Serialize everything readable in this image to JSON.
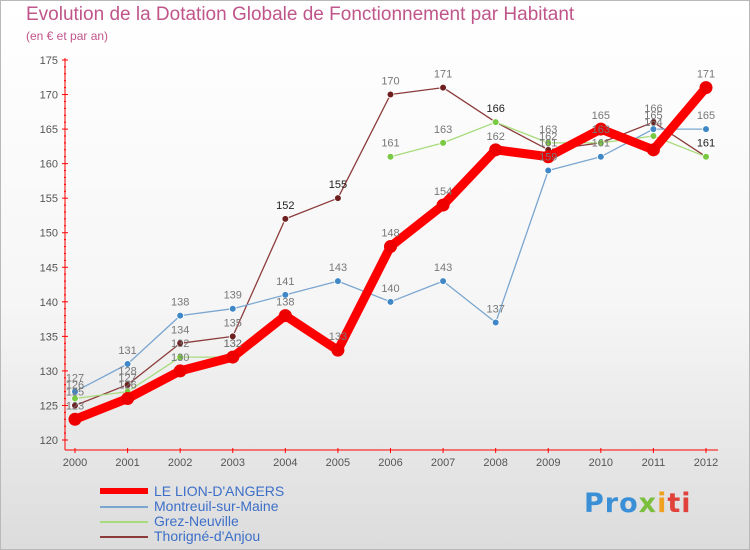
{
  "chart_data": {
    "type": "line",
    "title": "Evolution de la Dotation Globale de Fonctionnement par Habitant",
    "subtitle": "(en € et par an)",
    "x": [
      2000,
      2001,
      2002,
      2003,
      2004,
      2005,
      2006,
      2007,
      2008,
      2009,
      2010,
      2011,
      2012
    ],
    "x_tick_labels": [
      "2000",
      "2001",
      "2002",
      "2003",
      "2004",
      "2005",
      "2006",
      "2007",
      "2008",
      "2009",
      "2010",
      "2011",
      "2012"
    ],
    "y_ticks": [
      120,
      125,
      130,
      135,
      140,
      145,
      150,
      155,
      160,
      165,
      170,
      175
    ],
    "ylim": [
      120,
      175
    ],
    "grid": false,
    "series": [
      {
        "name": "LE LION-D'ANGERS",
        "color": "#ff0000",
        "marker_color": "#ee0000",
        "label_color": "#8a8a8a",
        "thick": true,
        "values": [
          123,
          126,
          130,
          132,
          138,
          133,
          148,
          154,
          162,
          161,
          165,
          162,
          171
        ]
      },
      {
        "name": "Montreuil-sur-Maine",
        "color": "#7aa6d0",
        "marker_color": "#3f87c6",
        "label_color": "#5b5b5b",
        "thick": false,
        "values": [
          127,
          131,
          138,
          139,
          141,
          143,
          140,
          143,
          137,
          159,
          161,
          165,
          165
        ]
      },
      {
        "name": "Grez-Neuville",
        "color": "#a7db7b",
        "marker_color": "#7ac943",
        "label_color": "#5b5b5b",
        "thick": false,
        "values": [
          126,
          127,
          132,
          132,
          null,
          null,
          161,
          163,
          166,
          163,
          163,
          164,
          161
        ]
      },
      {
        "name": "Thorigné-d'Anjou",
        "color": "#8c3b3b",
        "marker_color": "#6e1f1f",
        "label_color": "#5b5b5b",
        "thick": false,
        "values": [
          125,
          128,
          134,
          135,
          152,
          155,
          170,
          171,
          166,
          162,
          163,
          166,
          161
        ]
      }
    ],
    "point_labels": [
      {
        "x": 2000,
        "text": "127"
      },
      {
        "x": 2000,
        "text": "126"
      },
      {
        "x": 2000,
        "text": "125"
      },
      {
        "x": 2000,
        "text": "123"
      },
      {
        "x": 2001,
        "text": "131"
      },
      {
        "x": 2001,
        "text": "128"
      },
      {
        "x": 2001,
        "text": "127"
      },
      {
        "x": 2001,
        "text": "126"
      },
      {
        "x": 2002,
        "text": "138"
      },
      {
        "x": 2002,
        "text": "134"
      },
      {
        "x": 2002,
        "text": "132"
      },
      {
        "x": 2002,
        "text": "130"
      },
      {
        "x": 2003,
        "text": "139"
      },
      {
        "x": 2003,
        "text": "135"
      },
      {
        "x": 2003,
        "text": "132"
      },
      {
        "x": 2003,
        "text": "132"
      },
      {
        "x": 2004,
        "text": "152"
      },
      {
        "x": 2004,
        "text": "141"
      },
      {
        "x": 2004,
        "text": "138"
      },
      {
        "x": 2005,
        "text": "155"
      },
      {
        "x": 2005,
        "text": "143"
      },
      {
        "x": 2005,
        "text": "133"
      },
      {
        "x": 2006,
        "text": "170"
      },
      {
        "x": 2006,
        "text": "161"
      },
      {
        "x": 2006,
        "text": "148"
      },
      {
        "x": 2006,
        "text": "140"
      },
      {
        "x": 2007,
        "text": "171"
      },
      {
        "x": 2007,
        "text": "163"
      },
      {
        "x": 2007,
        "text": "154"
      },
      {
        "x": 2007,
        "text": "143"
      },
      {
        "x": 2008,
        "text": "166"
      },
      {
        "x": 2008,
        "text": "162"
      },
      {
        "x": 2008,
        "text": "137"
      },
      {
        "x": 2009,
        "text": "163"
      },
      {
        "x": 2009,
        "text": "162"
      },
      {
        "x": 2009,
        "text": "161"
      },
      {
        "x": 2009,
        "text": "159"
      },
      {
        "x": 2010,
        "text": "165"
      },
      {
        "x": 2010,
        "text": "163"
      },
      {
        "x": 2010,
        "text": "161"
      },
      {
        "x": 2011,
        "text": "166"
      },
      {
        "x": 2011,
        "text": "165"
      },
      {
        "x": 2011,
        "text": "164"
      },
      {
        "x": 2012,
        "text": "171"
      },
      {
        "x": 2012,
        "text": "165"
      },
      {
        "x": 2012,
        "text": "161"
      }
    ]
  },
  "brand": {
    "p1": "Pro",
    "p2": "x",
    "p3": "i",
    "p4": "ti"
  }
}
